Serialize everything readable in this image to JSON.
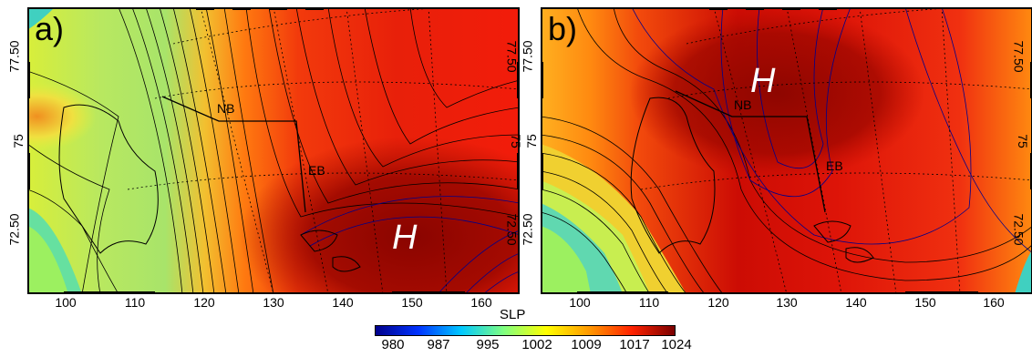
{
  "panels": [
    {
      "label": "a)",
      "high_label": "H",
      "regions": [
        "NB",
        "EB"
      ],
      "lat_ticks": [
        "77.50",
        "75",
        "72.50"
      ],
      "lon_ticks": [
        "100",
        "110",
        "120",
        "130",
        "140",
        "150",
        "160"
      ]
    },
    {
      "label": "b)",
      "high_label": "H",
      "regions": [
        "NB",
        "EB"
      ],
      "lat_ticks": [
        "77.50",
        "75",
        "72.50"
      ],
      "lon_ticks": [
        "100",
        "110",
        "120",
        "130",
        "140",
        "150",
        "160"
      ]
    }
  ],
  "colorbar": {
    "title": "SLP",
    "ticks": [
      "980",
      "987",
      "995",
      "1002",
      "1009",
      "1017",
      "1024"
    ],
    "colors": [
      "#00008b",
      "#0033ff",
      "#00c8ff",
      "#80ff80",
      "#ffff00",
      "#ff9900",
      "#ff2200",
      "#7a0000"
    ]
  }
}
